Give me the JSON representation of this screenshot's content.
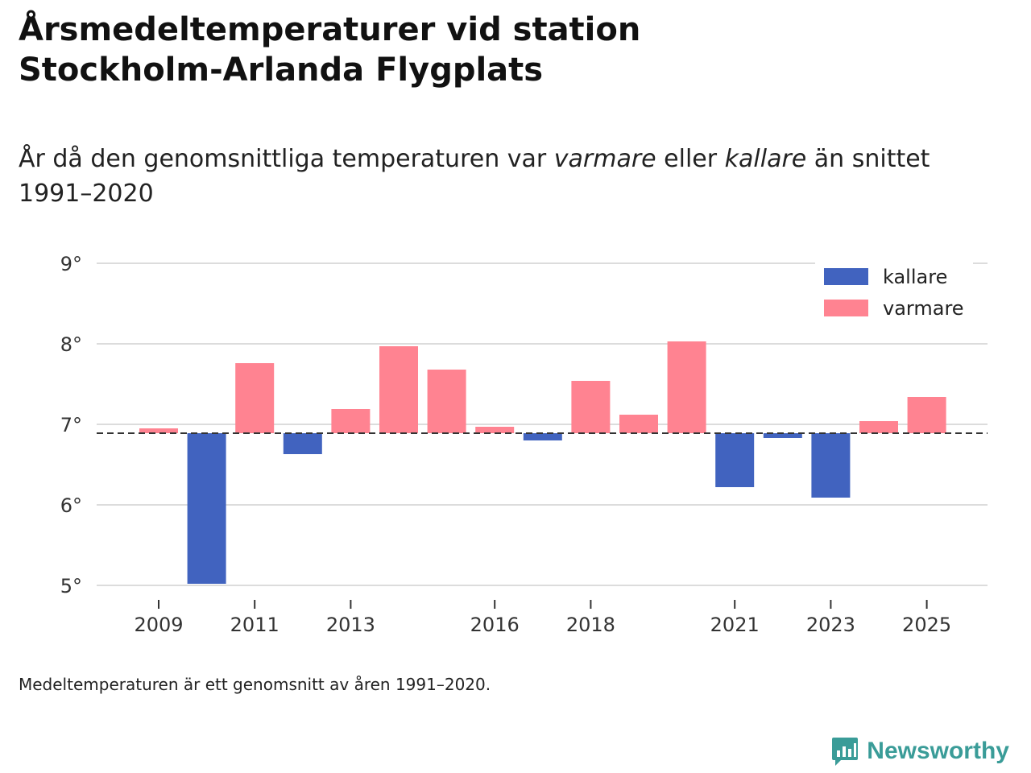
{
  "title": {
    "line1": "Årsmedeltemperaturer vid station",
    "line2": "Stockholm-Arlanda Flygplats"
  },
  "subtitle": {
    "part1": "År då den genomsnittliga temperaturen var ",
    "varmare": "varmare",
    "part2": " eller ",
    "kallare": "kallare",
    "part3": " än snittet",
    "line2": "1991–2020"
  },
  "footnote": "Medeltemperaturen är ett genomsnitt av åren 1991–2020.",
  "brand": {
    "name": "Newsworthy"
  },
  "chart_data": {
    "type": "bar",
    "title": "Årsmedeltemperaturer vid station Stockholm-Arlanda Flygplats",
    "baseline": 6.89,
    "years": [
      2009,
      2010,
      2011,
      2012,
      2013,
      2014,
      2015,
      2016,
      2017,
      2018,
      2019,
      2020,
      2021,
      2022,
      2023,
      2024,
      2025
    ],
    "values": [
      6.95,
      5.02,
      7.76,
      6.63,
      7.19,
      7.97,
      7.68,
      6.97,
      6.8,
      7.54,
      7.12,
      8.03,
      6.22,
      6.83,
      6.09,
      7.04,
      7.34
    ],
    "ylim": [
      5,
      9
    ],
    "yticks": [
      9,
      8,
      7,
      6,
      5
    ],
    "ytick_labels": [
      "9°",
      "8°",
      "7°",
      "6°",
      "5°"
    ],
    "xticks": [
      2009,
      2011,
      2013,
      2016,
      2018,
      2021,
      2023,
      2025
    ],
    "xtick_labels": [
      "2009",
      "2011",
      "2013",
      "2016",
      "2018",
      "2021",
      "2023",
      "2025"
    ],
    "legend": [
      {
        "name": "kallare",
        "color": "#4163bf"
      },
      {
        "name": "varmare",
        "color": "#ff8391"
      }
    ],
    "legend_position": "top-right",
    "grid": true
  }
}
